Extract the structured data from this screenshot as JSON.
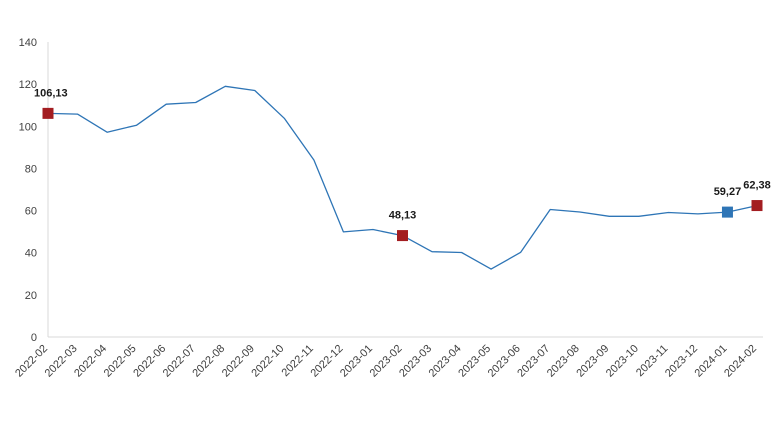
{
  "chart_data": {
    "type": "line",
    "title": "",
    "xlabel": "",
    "ylabel": "",
    "ylim": [
      0,
      140
    ],
    "yticks": [
      0,
      20,
      40,
      60,
      80,
      100,
      120,
      140
    ],
    "grid": false,
    "legend": "none",
    "categories": [
      "2022-02",
      "2022-03",
      "2022-04",
      "2022-05",
      "2022-06",
      "2022-07",
      "2022-08",
      "2022-09",
      "2022-10",
      "2022-11",
      "2022-12",
      "2023-01",
      "2023-02",
      "2023-03",
      "2023-04",
      "2023-05",
      "2023-06",
      "2023-07",
      "2023-08",
      "2023-09",
      "2023-10",
      "2023-11",
      "2023-12",
      "2024-01",
      "2024-02"
    ],
    "series": [
      {
        "values": [
          106.13,
          105.8,
          97.2,
          100.5,
          110.5,
          111.3,
          119.0,
          117.0,
          103.8,
          84.0,
          49.9,
          51.0,
          48.13,
          40.5,
          40.1,
          32.2,
          40.2,
          60.5,
          59.3,
          57.3,
          57.3,
          59.1,
          58.4,
          59.27,
          62.38
        ],
        "color": "#2e75b6"
      }
    ],
    "highlights": [
      {
        "index": 0,
        "label": "106,13",
        "color": "#a31d21"
      },
      {
        "index": 12,
        "label": "48,13",
        "color": "#a31d21"
      },
      {
        "index": 23,
        "label": "59,27",
        "color": "#2e75b6"
      },
      {
        "index": 24,
        "label": "62,38",
        "color": "#a31d21"
      }
    ],
    "axis_color": "#d9d9d9"
  }
}
